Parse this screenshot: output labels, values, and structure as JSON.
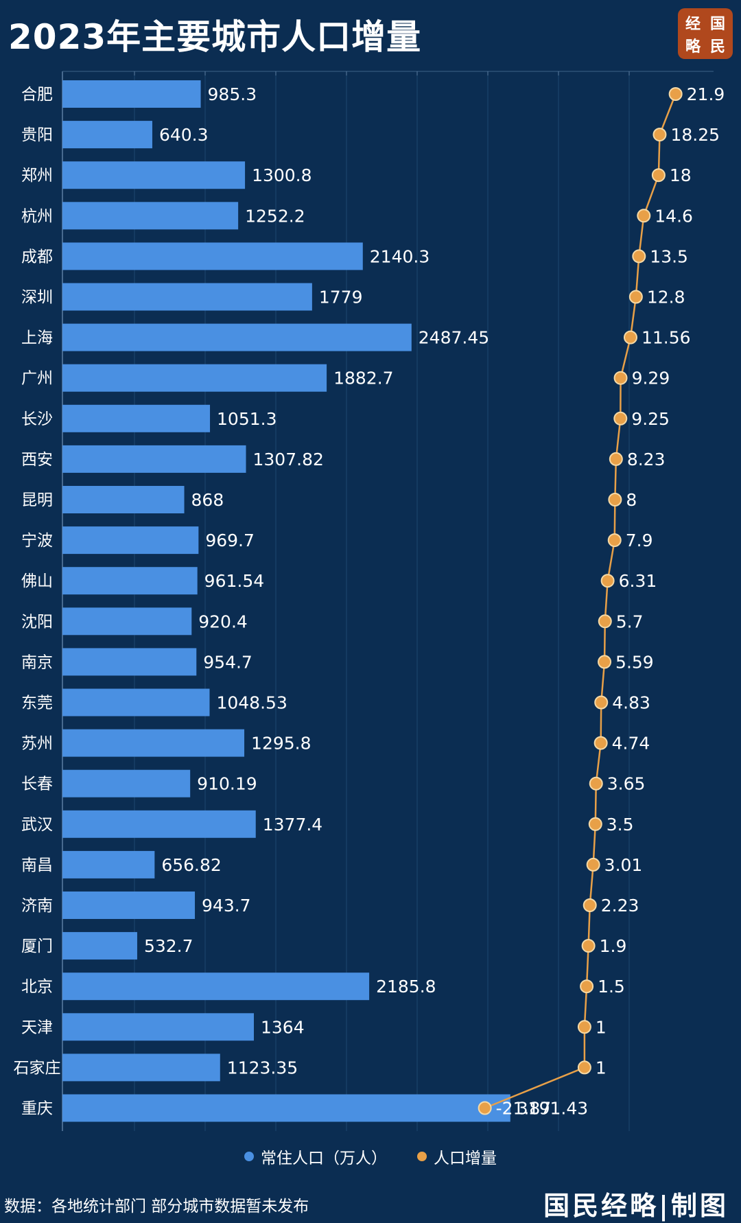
{
  "header": {
    "title": "2023年主要城市人口增量"
  },
  "logo": {
    "chars": [
      "经",
      "国",
      "略",
      "民"
    ]
  },
  "footer": {
    "source": "数据：各地统计部门 部分城市数据暂未发布",
    "brand": "国民经略|制图"
  },
  "colors": {
    "background": "#0b2d52",
    "bar": "#4a90e2",
    "line": "#e8a048",
    "dot_stroke": "#f5d9a6"
  },
  "chart_data": {
    "type": "bar",
    "orientation": "horizontal",
    "categories": [
      "合肥",
      "贵阳",
      "郑州",
      "杭州",
      "成都",
      "深圳",
      "上海",
      "广州",
      "长沙",
      "西安",
      "昆明",
      "宁波",
      "佛山",
      "沈阳",
      "南京",
      "东莞",
      "苏州",
      "长春",
      "武汉",
      "南昌",
      "济南",
      "厦门",
      "北京",
      "天津",
      "石家庄",
      "重庆"
    ],
    "series": [
      {
        "name": "常住人口（万人）",
        "type": "bar",
        "values": [
          985.3,
          640.3,
          1300.8,
          1252.2,
          2140.3,
          1779,
          2487.45,
          1882.7,
          1051.3,
          1307.82,
          868,
          969.7,
          961.54,
          920.4,
          954.7,
          1048.53,
          1295.8,
          910.19,
          1377.4,
          656.82,
          943.7,
          532.7,
          2185.8,
          1364,
          1123.35,
          3191.43
        ],
        "labels": [
          "985.3",
          "640.3",
          "1300.8",
          "1252.2",
          "2140.3",
          "1779",
          "2487.45",
          "1882.7",
          "1051.3",
          "1307.82",
          "868",
          "969.7",
          "961.54",
          "920.4",
          "954.7",
          "1048.53",
          "1295.8",
          "910.19",
          "1377.4",
          "656.82",
          "943.7",
          "532.7",
          "2185.8",
          "1364",
          "1123.35",
          "3191.43"
        ]
      },
      {
        "name": "人口增量",
        "type": "line",
        "values": [
          21.9,
          18.25,
          18,
          14.6,
          13.5,
          12.8,
          11.56,
          9.29,
          9.25,
          8.23,
          8,
          7.9,
          6.31,
          5.7,
          5.59,
          4.83,
          4.74,
          3.65,
          3.5,
          3.01,
          2.23,
          1.9,
          1.5,
          1,
          1,
          -21.87
        ],
        "labels": [
          "21.9",
          "18.25",
          "18",
          "14.6",
          "13.5",
          "12.8",
          "11.56",
          "9.29",
          "9.25",
          "8.23",
          "8",
          "7.9",
          "6.31",
          "5.7",
          "5.59",
          "4.83",
          "4.74",
          "3.65",
          "3.5",
          "3.01",
          "2.23",
          "1.9",
          "1.5",
          "1",
          "1",
          "-21.87"
        ]
      }
    ],
    "bar_axis_max": 4400,
    "line_axis_range": [
      -30,
      24
    ],
    "legend_position": "bottom",
    "grid": true
  }
}
